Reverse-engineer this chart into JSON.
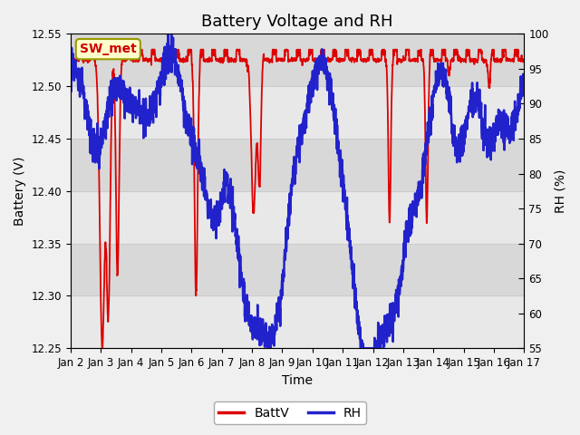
{
  "title": "Battery Voltage and RH",
  "xlabel": "Time",
  "ylabel_left": "Battery (V)",
  "ylabel_right": "RH (%)",
  "annotation_text": "SW_met",
  "ylim_left": [
    12.25,
    12.55
  ],
  "ylim_right": [
    55,
    100
  ],
  "yticks_left": [
    12.25,
    12.3,
    12.35,
    12.4,
    12.45,
    12.5,
    12.55
  ],
  "yticks_right": [
    55,
    60,
    65,
    70,
    75,
    80,
    85,
    90,
    95,
    100
  ],
  "xtick_labels": [
    "Jan 2",
    "Jan 3",
    "Jan 4",
    "Jan 5",
    "Jan 6",
    "Jan 7",
    "Jan 8",
    "Jan 9",
    "Jan 10",
    "Jan 11",
    "Jan 12",
    "Jan 13",
    "Jan 14",
    "Jan 15",
    "Jan 16",
    "Jan 17"
  ],
  "color_battv": "#dd0000",
  "color_rh": "#2222cc",
  "lw_battv": 1.3,
  "lw_rh": 1.8,
  "background_color": "#f0f0f0",
  "plot_bg_light": "#e8e8e8",
  "plot_bg_dark": "#d8d8d8",
  "grid_color": "#cccccc",
  "title_fontsize": 13,
  "axis_label_fontsize": 10,
  "tick_fontsize": 8.5,
  "legend_fontsize": 10,
  "annot_fontsize": 10,
  "annot_bg": "#ffffcc",
  "annot_border": "#999900",
  "annot_color": "#cc0000"
}
